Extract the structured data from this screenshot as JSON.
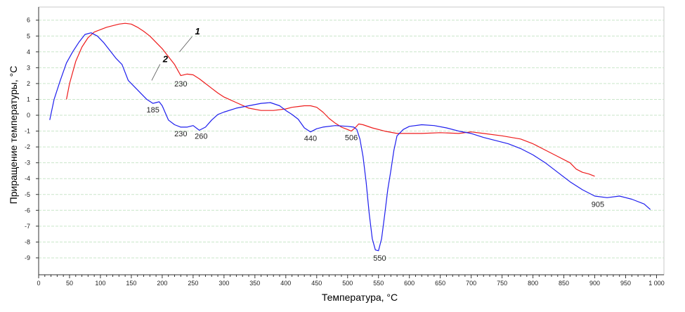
{
  "chart_data": {
    "type": "line",
    "xlabel": "Температура, °C",
    "ylabel": "Приращение температуры, °C",
    "xlim": [
      0,
      1000
    ],
    "ylim": [
      -10,
      6.5
    ],
    "grid": true,
    "x_ticks": [
      0,
      50,
      100,
      150,
      200,
      250,
      300,
      350,
      400,
      450,
      500,
      550,
      600,
      650,
      700,
      750,
      800,
      850,
      900,
      950,
      1000
    ],
    "x_tick_labels": [
      "0",
      "50",
      "100",
      "150",
      "200",
      "250",
      "300",
      "350",
      "400",
      "450",
      "500",
      "550",
      "600",
      "650",
      "700",
      "750",
      "800",
      "850",
      "900",
      "950",
      "1 000"
    ],
    "y_ticks": [
      6,
      5,
      4,
      3,
      2,
      1,
      0,
      -1,
      -2,
      -3,
      -4,
      -5,
      -6,
      -7,
      -8,
      -9
    ],
    "y_tick_labels": [
      "6",
      "5",
      "4",
      "3",
      "2",
      "1",
      "0",
      "-1",
      "-2",
      "-3",
      "-4",
      "-5",
      "-6",
      "-7",
      "-8",
      "-9"
    ],
    "series": [
      {
        "name": "1",
        "color": "#ee1c1c",
        "x": [
          45,
          50,
          60,
          70,
          80,
          90,
          100,
          110,
          120,
          130,
          140,
          150,
          160,
          170,
          180,
          190,
          200,
          210,
          220,
          230,
          240,
          250,
          260,
          270,
          280,
          290,
          300,
          320,
          340,
          360,
          380,
          400,
          410,
          420,
          430,
          440,
          450,
          460,
          470,
          480,
          490,
          500,
          506,
          512,
          518,
          525,
          540,
          560,
          580,
          600,
          620,
          650,
          680,
          700,
          720,
          750,
          780,
          800,
          820,
          840,
          860,
          870,
          880,
          890,
          900
        ],
        "y": [
          1.0,
          2.0,
          3.4,
          4.3,
          4.9,
          5.25,
          5.4,
          5.55,
          5.65,
          5.75,
          5.8,
          5.75,
          5.55,
          5.3,
          5.0,
          4.6,
          4.2,
          3.7,
          3.2,
          2.5,
          2.6,
          2.55,
          2.3,
          2.0,
          1.7,
          1.4,
          1.15,
          0.8,
          0.45,
          0.3,
          0.3,
          0.4,
          0.5,
          0.55,
          0.6,
          0.6,
          0.5,
          0.2,
          -0.2,
          -0.5,
          -0.75,
          -0.9,
          -1.0,
          -0.8,
          -0.55,
          -0.6,
          -0.8,
          -1.0,
          -1.15,
          -1.15,
          -1.15,
          -1.1,
          -1.15,
          -1.05,
          -1.15,
          -1.3,
          -1.5,
          -1.8,
          -2.2,
          -2.6,
          -3.0,
          -3.4,
          -3.6,
          -3.7,
          -3.85
        ]
      },
      {
        "name": "2",
        "color": "#1e1eee",
        "x": [
          18,
          25,
          35,
          45,
          55,
          65,
          75,
          85,
          95,
          105,
          115,
          125,
          135,
          145,
          155,
          165,
          175,
          185,
          190,
          195,
          200,
          210,
          220,
          230,
          240,
          250,
          260,
          270,
          280,
          290,
          300,
          320,
          340,
          360,
          375,
          390,
          400,
          410,
          420,
          430,
          440,
          450,
          460,
          480,
          500,
          510,
          515,
          520,
          525,
          530,
          535,
          540,
          545,
          550,
          555,
          560,
          565,
          570,
          575,
          580,
          590,
          600,
          620,
          640,
          660,
          680,
          700,
          720,
          740,
          760,
          780,
          800,
          820,
          840,
          860,
          880,
          900,
          920,
          940,
          960,
          980,
          990
        ],
        "y": [
          -0.3,
          1.0,
          2.2,
          3.3,
          4.0,
          4.6,
          5.1,
          5.2,
          5.0,
          4.6,
          4.1,
          3.6,
          3.2,
          2.2,
          1.8,
          1.4,
          1.0,
          0.75,
          0.8,
          0.85,
          0.6,
          -0.3,
          -0.6,
          -0.75,
          -0.75,
          -0.65,
          -0.95,
          -0.75,
          -0.3,
          0.05,
          0.2,
          0.45,
          0.6,
          0.75,
          0.8,
          0.6,
          0.3,
          0.05,
          -0.25,
          -0.8,
          -1.05,
          -0.85,
          -0.75,
          -0.65,
          -0.7,
          -0.75,
          -0.9,
          -1.5,
          -2.6,
          -4.2,
          -6.2,
          -7.8,
          -8.5,
          -8.55,
          -7.8,
          -6.3,
          -4.7,
          -3.5,
          -2.2,
          -1.3,
          -0.9,
          -0.7,
          -0.6,
          -0.65,
          -0.8,
          -1.0,
          -1.15,
          -1.4,
          -1.6,
          -1.8,
          -2.1,
          -2.5,
          -3.0,
          -3.6,
          -4.2,
          -4.7,
          -5.1,
          -5.2,
          -5.1,
          -5.3,
          -5.6,
          -5.95
        ]
      }
    ],
    "annotations": [
      {
        "text": "230",
        "x": 230,
        "y": 2.0
      },
      {
        "text": "185",
        "x": 185,
        "y": 0.35
      },
      {
        "text": "230",
        "x": 230,
        "y": -1.15
      },
      {
        "text": "260",
        "x": 263,
        "y": -1.3
      },
      {
        "text": "440",
        "x": 440,
        "y": -1.45
      },
      {
        "text": "506",
        "x": 506,
        "y": -1.4
      },
      {
        "text": "550",
        "x": 552,
        "y": -9.0
      },
      {
        "text": "905",
        "x": 905,
        "y": -5.6
      }
    ],
    "series_labels": [
      {
        "text": "1",
        "series": "1",
        "x": 253,
        "y": 5.1
      },
      {
        "text": "2",
        "series": "2",
        "x": 201,
        "y": 3.35
      }
    ]
  }
}
